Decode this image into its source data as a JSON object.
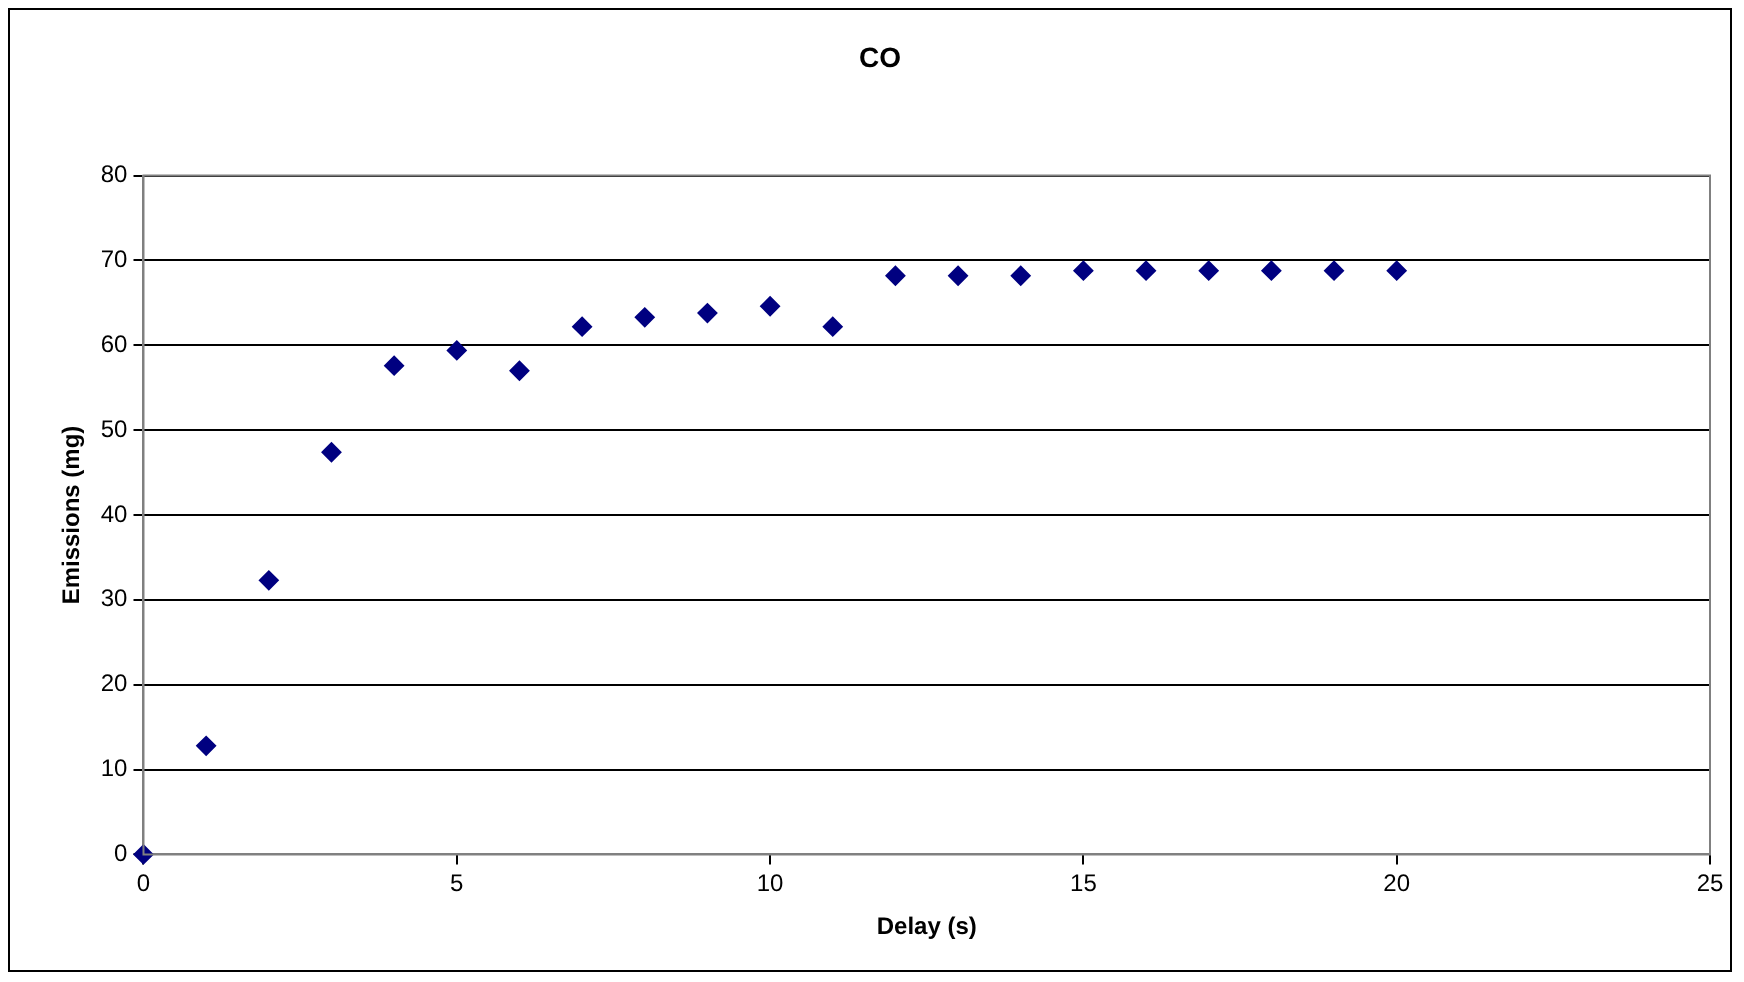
{
  "chart_data": {
    "type": "scatter",
    "title": "CO",
    "xlabel": "Delay (s)",
    "ylabel": "Emissions (mg)",
    "x": [
      0,
      1,
      2,
      3,
      4,
      5,
      6,
      7,
      8,
      9,
      10,
      11,
      12,
      13,
      14,
      15,
      16,
      17,
      18,
      19,
      20
    ],
    "series": [
      {
        "color": "#000080",
        "values": [
          0,
          12.8,
          32.3,
          47.4,
          57.6,
          59.4,
          57,
          62.2,
          63.3,
          63.8,
          64.6,
          62.2,
          68.2,
          68.2,
          68.2,
          68.8,
          68.8,
          68.8,
          68.8,
          68.8,
          68.8
        ]
      }
    ],
    "xlim": [
      0,
      25
    ],
    "xticks": [
      0,
      5,
      10,
      15,
      20,
      25
    ],
    "ylim": [
      0,
      80
    ],
    "yticks": [
      0,
      10,
      20,
      30,
      40,
      50,
      60,
      70,
      80
    ],
    "grid": "y",
    "legend": false,
    "marker": "diamond"
  }
}
